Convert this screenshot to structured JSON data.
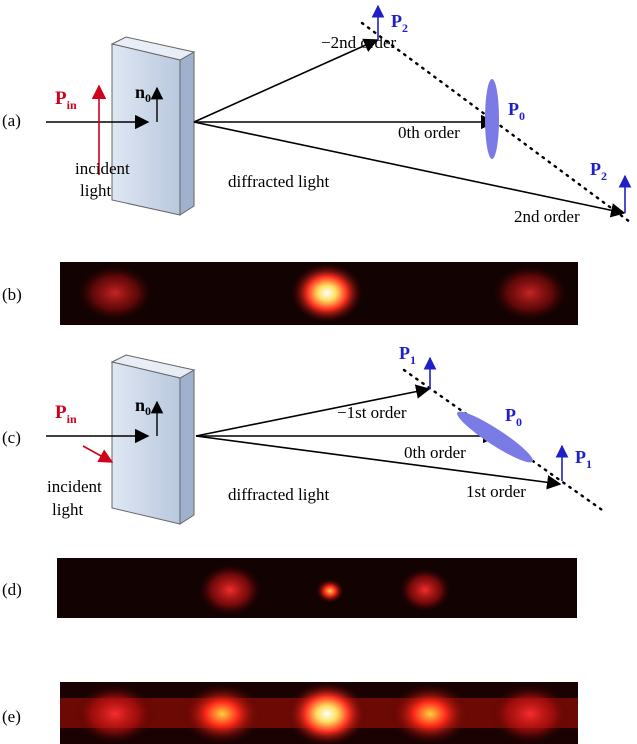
{
  "panel_a": {
    "label": "(a)",
    "incident": {
      "symbol": "P",
      "sub": "in"
    },
    "axis": {
      "symbol": "n",
      "sub": "0"
    },
    "incident_text": [
      "incident",
      "light"
    ],
    "diffracted_text": "diffracted light",
    "orders": [
      "−2nd order",
      "0th order",
      "2nd order"
    ],
    "polarizations": [
      {
        "symbol": "P",
        "sub": "2"
      },
      {
        "symbol": "P",
        "sub": "0"
      },
      {
        "symbol": "P",
        "sub": "2"
      }
    ]
  },
  "panel_b": {
    "label": "(b)"
  },
  "panel_c": {
    "label": "(c)",
    "incident": {
      "symbol": "P",
      "sub": "in"
    },
    "axis": {
      "symbol": "n",
      "sub": "0"
    },
    "incident_text": [
      "incident",
      "light"
    ],
    "diffracted_text": "diffracted light",
    "orders": [
      "−1st order",
      "0th order",
      "1st order"
    ],
    "polarizations": [
      {
        "symbol": "P",
        "sub": "1"
      },
      {
        "symbol": "P",
        "sub": "0"
      },
      {
        "symbol": "P",
        "sub": "1"
      }
    ]
  },
  "panel_d": {
    "label": "(d)"
  },
  "panel_e": {
    "label": "(e)"
  }
}
